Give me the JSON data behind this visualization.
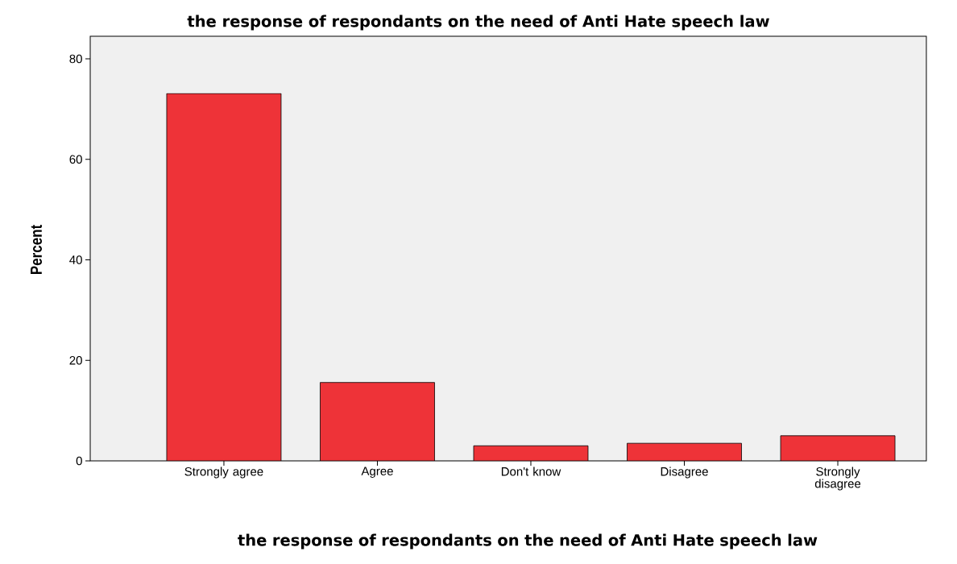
{
  "chart_data": {
    "type": "bar",
    "title": "the response of respondants on the need of Anti Hate speech law",
    "xlabel": "the response of respondants on the need of Anti Hate speech law",
    "ylabel": "Percent",
    "categories": [
      "Strongly agree",
      "Agree",
      "Don't know",
      "Disagree",
      "Strongly disagree"
    ],
    "values": [
      73.1,
      15.6,
      3.0,
      3.5,
      5.0
    ],
    "color": "#ee3338",
    "ylim": [
      0,
      84.5
    ],
    "yticks": [
      0,
      20,
      40,
      60,
      80
    ],
    "grid": false
  }
}
